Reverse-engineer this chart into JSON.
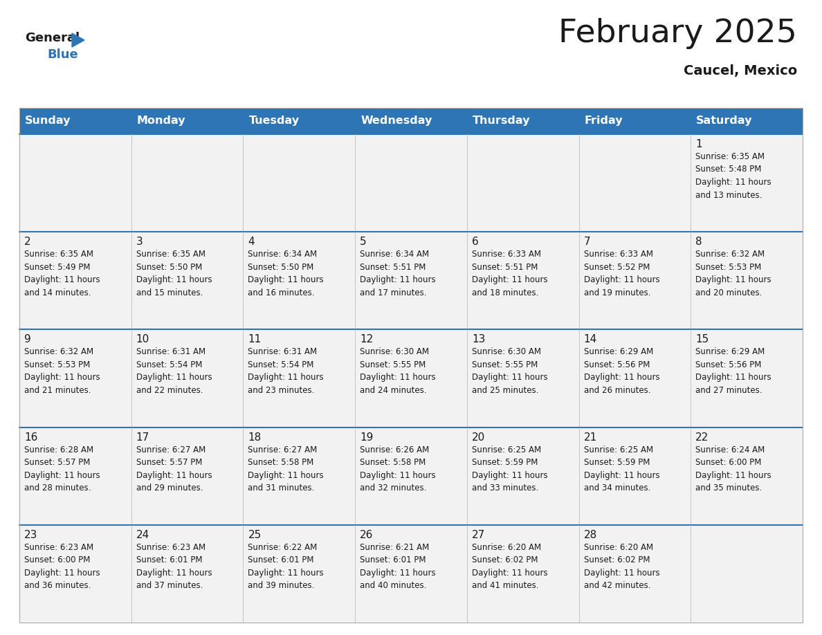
{
  "title": "February 2025",
  "subtitle": "Caucel, Mexico",
  "header_color": "#2E75B6",
  "header_text_color": "#FFFFFF",
  "cell_bg_even": "#F2F2F2",
  "cell_bg_odd": "#FFFFFF",
  "border_color": "#2E75B6",
  "grid_color": "#CCCCCC",
  "text_color": "#1a1a1a",
  "day_names": [
    "Sunday",
    "Monday",
    "Tuesday",
    "Wednesday",
    "Thursday",
    "Friday",
    "Saturday"
  ],
  "title_fontsize": 34,
  "subtitle_fontsize": 14,
  "day_name_fontsize": 11.5,
  "date_fontsize": 11,
  "info_fontsize": 8.5,
  "logo_general_fontsize": 13,
  "logo_blue_fontsize": 13,
  "weeks": [
    [
      {
        "day": 0,
        "info": ""
      },
      {
        "day": 0,
        "info": ""
      },
      {
        "day": 0,
        "info": ""
      },
      {
        "day": 0,
        "info": ""
      },
      {
        "day": 0,
        "info": ""
      },
      {
        "day": 0,
        "info": ""
      },
      {
        "day": 1,
        "info": "Sunrise: 6:35 AM\nSunset: 5:48 PM\nDaylight: 11 hours\nand 13 minutes."
      }
    ],
    [
      {
        "day": 2,
        "info": "Sunrise: 6:35 AM\nSunset: 5:49 PM\nDaylight: 11 hours\nand 14 minutes."
      },
      {
        "day": 3,
        "info": "Sunrise: 6:35 AM\nSunset: 5:50 PM\nDaylight: 11 hours\nand 15 minutes."
      },
      {
        "day": 4,
        "info": "Sunrise: 6:34 AM\nSunset: 5:50 PM\nDaylight: 11 hours\nand 16 minutes."
      },
      {
        "day": 5,
        "info": "Sunrise: 6:34 AM\nSunset: 5:51 PM\nDaylight: 11 hours\nand 17 minutes."
      },
      {
        "day": 6,
        "info": "Sunrise: 6:33 AM\nSunset: 5:51 PM\nDaylight: 11 hours\nand 18 minutes."
      },
      {
        "day": 7,
        "info": "Sunrise: 6:33 AM\nSunset: 5:52 PM\nDaylight: 11 hours\nand 19 minutes."
      },
      {
        "day": 8,
        "info": "Sunrise: 6:32 AM\nSunset: 5:53 PM\nDaylight: 11 hours\nand 20 minutes."
      }
    ],
    [
      {
        "day": 9,
        "info": "Sunrise: 6:32 AM\nSunset: 5:53 PM\nDaylight: 11 hours\nand 21 minutes."
      },
      {
        "day": 10,
        "info": "Sunrise: 6:31 AM\nSunset: 5:54 PM\nDaylight: 11 hours\nand 22 minutes."
      },
      {
        "day": 11,
        "info": "Sunrise: 6:31 AM\nSunset: 5:54 PM\nDaylight: 11 hours\nand 23 minutes."
      },
      {
        "day": 12,
        "info": "Sunrise: 6:30 AM\nSunset: 5:55 PM\nDaylight: 11 hours\nand 24 minutes."
      },
      {
        "day": 13,
        "info": "Sunrise: 6:30 AM\nSunset: 5:55 PM\nDaylight: 11 hours\nand 25 minutes."
      },
      {
        "day": 14,
        "info": "Sunrise: 6:29 AM\nSunset: 5:56 PM\nDaylight: 11 hours\nand 26 minutes."
      },
      {
        "day": 15,
        "info": "Sunrise: 6:29 AM\nSunset: 5:56 PM\nDaylight: 11 hours\nand 27 minutes."
      }
    ],
    [
      {
        "day": 16,
        "info": "Sunrise: 6:28 AM\nSunset: 5:57 PM\nDaylight: 11 hours\nand 28 minutes."
      },
      {
        "day": 17,
        "info": "Sunrise: 6:27 AM\nSunset: 5:57 PM\nDaylight: 11 hours\nand 29 minutes."
      },
      {
        "day": 18,
        "info": "Sunrise: 6:27 AM\nSunset: 5:58 PM\nDaylight: 11 hours\nand 31 minutes."
      },
      {
        "day": 19,
        "info": "Sunrise: 6:26 AM\nSunset: 5:58 PM\nDaylight: 11 hours\nand 32 minutes."
      },
      {
        "day": 20,
        "info": "Sunrise: 6:25 AM\nSunset: 5:59 PM\nDaylight: 11 hours\nand 33 minutes."
      },
      {
        "day": 21,
        "info": "Sunrise: 6:25 AM\nSunset: 5:59 PM\nDaylight: 11 hours\nand 34 minutes."
      },
      {
        "day": 22,
        "info": "Sunrise: 6:24 AM\nSunset: 6:00 PM\nDaylight: 11 hours\nand 35 minutes."
      }
    ],
    [
      {
        "day": 23,
        "info": "Sunrise: 6:23 AM\nSunset: 6:00 PM\nDaylight: 11 hours\nand 36 minutes."
      },
      {
        "day": 24,
        "info": "Sunrise: 6:23 AM\nSunset: 6:01 PM\nDaylight: 11 hours\nand 37 minutes."
      },
      {
        "day": 25,
        "info": "Sunrise: 6:22 AM\nSunset: 6:01 PM\nDaylight: 11 hours\nand 39 minutes."
      },
      {
        "day": 26,
        "info": "Sunrise: 6:21 AM\nSunset: 6:01 PM\nDaylight: 11 hours\nand 40 minutes."
      },
      {
        "day": 27,
        "info": "Sunrise: 6:20 AM\nSunset: 6:02 PM\nDaylight: 11 hours\nand 41 minutes."
      },
      {
        "day": 28,
        "info": "Sunrise: 6:20 AM\nSunset: 6:02 PM\nDaylight: 11 hours\nand 42 minutes."
      },
      {
        "day": 0,
        "info": ""
      }
    ]
  ]
}
